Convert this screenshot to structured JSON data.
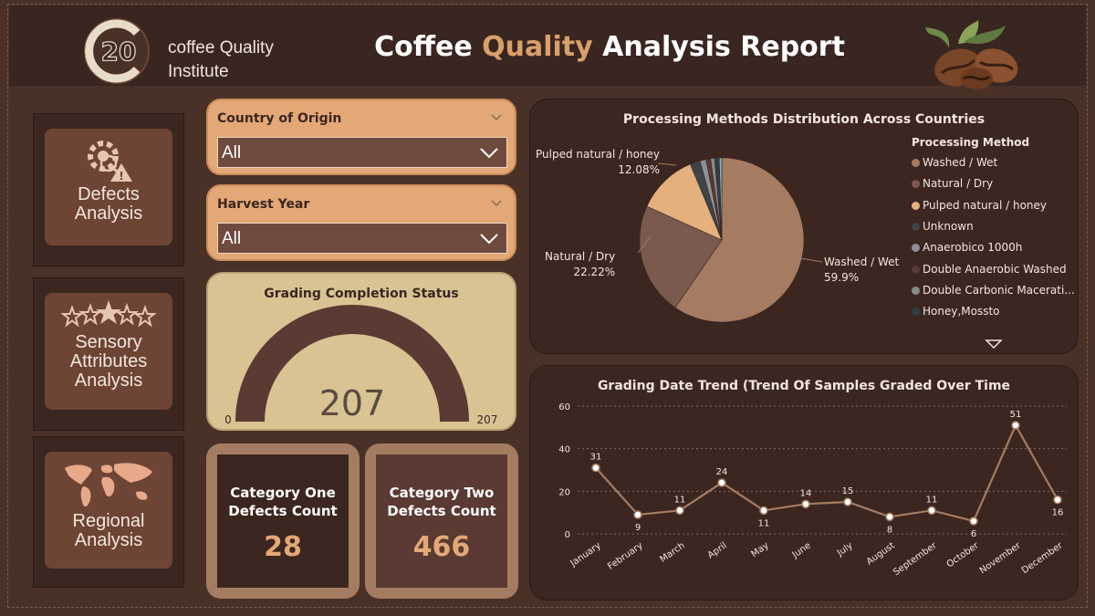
{
  "header": {
    "org_name_line1": "coffee Quality",
    "org_name_line2": "Institute",
    "logo_text": "20",
    "title_part1": "Coffee ",
    "title_highlight": "Quality",
    "title_part2": " Analysis Report"
  },
  "nav": {
    "defects": {
      "line1": "Defects",
      "line2": "Analysis"
    },
    "sensory": {
      "line1": "Sensory",
      "line2": "Attributes",
      "line3": "Analysis"
    },
    "regional": {
      "line1": "Regional",
      "line2": "Analysis"
    }
  },
  "filters": {
    "country": {
      "label": "Country of Origin",
      "value": "All"
    },
    "harvest": {
      "label": "Harvest Year",
      "value": "All"
    }
  },
  "gauge": {
    "title": "Grading Completion Status",
    "value": "207",
    "min": "0",
    "max": "207",
    "fraction": 1.0
  },
  "kpis": {
    "cat_one": {
      "line1": "Category One",
      "line2": "Defects Count",
      "value": "28"
    },
    "cat_two": {
      "line1": "Category Two",
      "line2": "Defects Count",
      "value": "466"
    }
  },
  "colors": {
    "accent": "#e3a876",
    "dark_panel": "#3b2620",
    "background": "#4a3128"
  },
  "chart_data": [
    {
      "type": "pie",
      "title": "Processing Methods Distribution Across Countries",
      "legend_title": "Processing Method",
      "legend_position": "right",
      "slices": [
        {
          "name": "Washed / Wet",
          "value": 59.9,
          "label": "59.9%",
          "color": "#a57c62"
        },
        {
          "name": "Natural / Dry",
          "value": 22.22,
          "label": "22.22%",
          "color": "#7a5a4e"
        },
        {
          "name": "Pulped natural / honey",
          "value": 12.08,
          "label": "12.08%",
          "color": "#e3b07e"
        },
        {
          "name": "Unknown",
          "value": 2.0,
          "color": "#3e4448"
        },
        {
          "name": "Anaerobico 1000h",
          "value": 1.2,
          "color": "#8a9298"
        },
        {
          "name": "Double Anaerobic Washed",
          "value": 0.9,
          "color": "#5a3a34"
        },
        {
          "name": "Double Carbonic Macerati...",
          "value": 0.8,
          "color": "#8a8a8a"
        },
        {
          "name": "Honey,Mossto",
          "value": 0.9,
          "color": "#2e3e4a"
        }
      ],
      "extra_slice_color": "#7fb6c2",
      "extra_slice_value": 0.5
    },
    {
      "type": "line",
      "title": "Grading Date Trend (Trend Of Samples Graded Over Time",
      "categories": [
        "January",
        "February",
        "March",
        "April",
        "May",
        "June",
        "July",
        "August",
        "September",
        "October",
        "November",
        "December"
      ],
      "values": [
        31,
        9,
        11,
        24,
        11,
        14,
        15,
        8,
        11,
        6,
        51,
        16
      ],
      "ylim": [
        0,
        60
      ],
      "yticks": [
        0,
        20,
        40,
        60
      ],
      "grid": true,
      "line_color": "#a57c62"
    }
  ]
}
